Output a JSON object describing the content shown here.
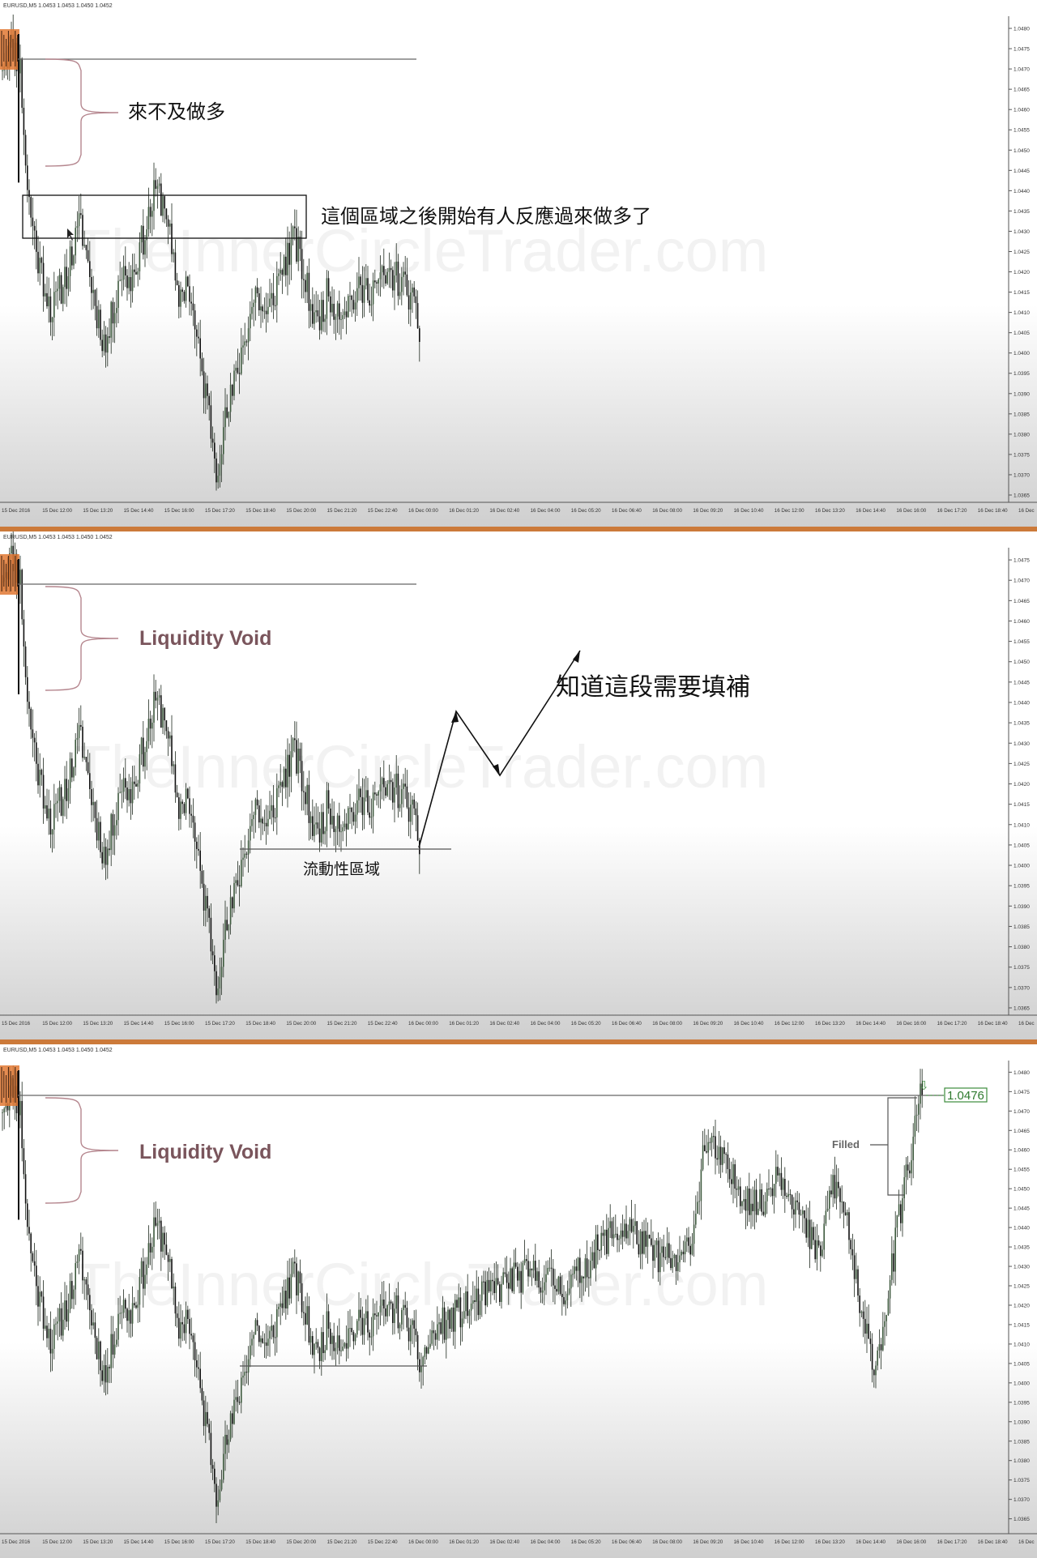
{
  "panels": [
    {
      "symbol_header": "EURUSD,M5 1.0453 1.0453 1.0450 1.0452",
      "watermark": "TheInnerCircleTrader.com",
      "annotations": {
        "brace_text": "來不及做多",
        "box_text": "這個區域之後開始有人反應過來做多了"
      }
    },
    {
      "symbol_header": "EURUSD,M5 1.0453 1.0453 1.0450 1.0452",
      "watermark": "TheInnerCircleTrader.com",
      "annotations": {
        "brace_text": "Liquidity Void",
        "arrow_text": "知道這段需要填補",
        "zone_text": "流動性區域"
      }
    },
    {
      "symbol_header": "EURUSD,M5 1.0453 1.0453 1.0450 1.0452",
      "watermark": "TheInnerCircleTrader.com",
      "annotations": {
        "brace_text": "Liquidity Void",
        "filled_text": "Filled",
        "price_label": "1.0476"
      }
    }
  ],
  "chart_data": [
    {
      "type": "candlestick",
      "symbol": "EURUSD",
      "timeframe": "M5",
      "y_ticks": [
        "1.0480",
        "1.0475",
        "1.0470",
        "1.0465",
        "1.0460",
        "1.0455",
        "1.0450",
        "1.0445",
        "1.0440",
        "1.0435",
        "1.0430",
        "1.0425",
        "1.0420",
        "1.0415",
        "1.0410",
        "1.0405",
        "1.0400",
        "1.0395",
        "1.0390",
        "1.0385",
        "1.0380",
        "1.0375",
        "1.0370",
        "1.0365"
      ],
      "ylim": [
        1.0364,
        1.0483
      ],
      "x_ticks": [
        "15 Dec 2016",
        "15 Dec 12:00",
        "15 Dec 13:20",
        "15 Dec 14:40",
        "15 Dec 16:00",
        "15 Dec 17:20",
        "15 Dec 18:40",
        "15 Dec 20:00",
        "15 Dec 21:20",
        "15 Dec 22:40",
        "16 Dec 00:00",
        "16 Dec 01:20",
        "16 Dec 02:40",
        "16 Dec 04:00",
        "16 Dec 05:20",
        "16 Dec 06:40",
        "16 Dec 08:00",
        "16 Dec 09:20",
        "16 Dec 10:40",
        "16 Dec 12:00",
        "16 Dec 13:20",
        "16 Dec 14:40",
        "16 Dec 16:00",
        "16 Dec 17:20",
        "16 Dec 18:40",
        "16 Dec"
      ],
      "close_path": [
        [
          0,
          1.0472
        ],
        [
          6,
          1.0476
        ],
        [
          10,
          1.047
        ],
        [
          14,
          1.044
        ],
        [
          20,
          1.0423
        ],
        [
          28,
          1.041
        ],
        [
          36,
          1.042
        ],
        [
          44,
          1.0432
        ],
        [
          52,
          1.0412
        ],
        [
          58,
          1.0401
        ],
        [
          66,
          1.042
        ],
        [
          72,
          1.0418
        ],
        [
          80,
          1.043
        ],
        [
          86,
          1.044
        ],
        [
          92,
          1.0436
        ],
        [
          98,
          1.0413
        ],
        [
          104,
          1.0418
        ],
        [
          110,
          1.04
        ],
        [
          116,
          1.0385
        ],
        [
          120,
          1.0372
        ],
        [
          124,
          1.0381
        ],
        [
          130,
          1.0392
        ],
        [
          136,
          1.0404
        ],
        [
          142,
          1.0415
        ],
        [
          148,
          1.0408
        ],
        [
          156,
          1.042
        ],
        [
          164,
          1.0428
        ],
        [
          170,
          1.0417
        ],
        [
          176,
          1.0407
        ],
        [
          182,
          1.0414
        ],
        [
          190,
          1.0411
        ],
        [
          198,
          1.0414
        ],
        [
          206,
          1.0416
        ],
        [
          214,
          1.0418
        ],
        [
          220,
          1.0419
        ],
        [
          228,
          1.0415
        ],
        [
          234,
          1.0405
        ]
      ]
    },
    {
      "type": "candlestick",
      "symbol": "EURUSD",
      "timeframe": "M5",
      "y_ticks": [
        "1.0475",
        "1.0470",
        "1.0465",
        "1.0460",
        "1.0455",
        "1.0450",
        "1.0445",
        "1.0440",
        "1.0435",
        "1.0430",
        "1.0425",
        "1.0420",
        "1.0415",
        "1.0410",
        "1.0405",
        "1.0400",
        "1.0395",
        "1.0390",
        "1.0385",
        "1.0380",
        "1.0375",
        "1.0370",
        "1.0365"
      ],
      "ylim": [
        1.0364,
        1.0478
      ],
      "x_ticks": [
        "15 Dec 2016",
        "15 Dec 12:00",
        "15 Dec 13:20",
        "15 Dec 14:40",
        "15 Dec 16:00",
        "15 Dec 17:20",
        "15 Dec 18:40",
        "15 Dec 20:00",
        "15 Dec 21:20",
        "15 Dec 22:40",
        "16 Dec 00:00",
        "16 Dec 01:20",
        "16 Dec 02:40",
        "16 Dec 04:00",
        "16 Dec 05:20",
        "16 Dec 06:40",
        "16 Dec 08:00",
        "16 Dec 09:20",
        "16 Dec 10:40",
        "16 Dec 12:00",
        "16 Dec 13:20",
        "16 Dec 14:40",
        "16 Dec 16:00",
        "16 Dec 17:20",
        "16 Dec 18:40",
        "16 Dec"
      ],
      "close_path": [
        [
          0,
          1.0472
        ],
        [
          6,
          1.0476
        ],
        [
          10,
          1.047
        ],
        [
          14,
          1.044
        ],
        [
          20,
          1.0423
        ],
        [
          28,
          1.041
        ],
        [
          36,
          1.042
        ],
        [
          44,
          1.0432
        ],
        [
          52,
          1.0412
        ],
        [
          58,
          1.0401
        ],
        [
          66,
          1.042
        ],
        [
          72,
          1.0418
        ],
        [
          80,
          1.043
        ],
        [
          86,
          1.044
        ],
        [
          92,
          1.0436
        ],
        [
          98,
          1.0413
        ],
        [
          104,
          1.0418
        ],
        [
          110,
          1.04
        ],
        [
          116,
          1.0385
        ],
        [
          120,
          1.0372
        ],
        [
          124,
          1.0381
        ],
        [
          130,
          1.0392
        ],
        [
          136,
          1.0404
        ],
        [
          142,
          1.0415
        ],
        [
          148,
          1.0408
        ],
        [
          156,
          1.042
        ],
        [
          164,
          1.0428
        ],
        [
          170,
          1.0417
        ],
        [
          176,
          1.0407
        ],
        [
          182,
          1.0414
        ],
        [
          190,
          1.0411
        ],
        [
          198,
          1.0414
        ],
        [
          206,
          1.0416
        ],
        [
          214,
          1.0418
        ],
        [
          220,
          1.0419
        ],
        [
          228,
          1.0415
        ],
        [
          234,
          1.0405
        ]
      ]
    },
    {
      "type": "candlestick",
      "symbol": "EURUSD",
      "timeframe": "M5",
      "y_ticks": [
        "1.0480",
        "1.0475",
        "1.0470",
        "1.0465",
        "1.0460",
        "1.0455",
        "1.0450",
        "1.0445",
        "1.0440",
        "1.0435",
        "1.0430",
        "1.0425",
        "1.0420",
        "1.0415",
        "1.0410",
        "1.0405",
        "1.0400",
        "1.0395",
        "1.0390",
        "1.0385",
        "1.0380",
        "1.0375",
        "1.0370",
        "1.0365"
      ],
      "ylim": [
        1.0362,
        1.0483
      ],
      "x_ticks": [
        "15 Dec 2016",
        "15 Dec 12:00",
        "15 Dec 13:20",
        "15 Dec 14:40",
        "15 Dec 16:00",
        "15 Dec 17:20",
        "15 Dec 18:40",
        "15 Dec 20:00",
        "15 Dec 21:20",
        "15 Dec 22:40",
        "16 Dec 00:00",
        "16 Dec 01:20",
        "16 Dec 02:40",
        "16 Dec 04:00",
        "16 Dec 05:20",
        "16 Dec 06:40",
        "16 Dec 08:00",
        "16 Dec 09:20",
        "16 Dec 10:40",
        "16 Dec 12:00",
        "16 Dec 13:20",
        "16 Dec 14:40",
        "16 Dec 16:00",
        "16 Dec 17:20",
        "16 Dec 18:40",
        "16 Dec"
      ],
      "close_path": [
        [
          0,
          1.0472
        ],
        [
          6,
          1.0476
        ],
        [
          10,
          1.047
        ],
        [
          14,
          1.044
        ],
        [
          20,
          1.0423
        ],
        [
          28,
          1.041
        ],
        [
          36,
          1.042
        ],
        [
          44,
          1.0432
        ],
        [
          52,
          1.0412
        ],
        [
          58,
          1.0401
        ],
        [
          66,
          1.042
        ],
        [
          72,
          1.0418
        ],
        [
          80,
          1.043
        ],
        [
          86,
          1.044
        ],
        [
          92,
          1.0436
        ],
        [
          98,
          1.0413
        ],
        [
          104,
          1.0418
        ],
        [
          110,
          1.04
        ],
        [
          116,
          1.0385
        ],
        [
          120,
          1.0372
        ],
        [
          124,
          1.0381
        ],
        [
          130,
          1.0392
        ],
        [
          136,
          1.0404
        ],
        [
          142,
          1.0415
        ],
        [
          148,
          1.0408
        ],
        [
          156,
          1.042
        ],
        [
          164,
          1.0428
        ],
        [
          170,
          1.0417
        ],
        [
          176,
          1.0407
        ],
        [
          182,
          1.0414
        ],
        [
          190,
          1.0411
        ],
        [
          198,
          1.0414
        ],
        [
          206,
          1.0416
        ],
        [
          214,
          1.0418
        ],
        [
          220,
          1.0419
        ],
        [
          228,
          1.0415
        ],
        [
          234,
          1.0405
        ],
        [
          244,
          1.0414
        ],
        [
          256,
          1.0418
        ],
        [
          270,
          1.0422
        ],
        [
          286,
          1.0427
        ],
        [
          300,
          1.0428
        ],
        [
          316,
          1.0424
        ],
        [
          330,
          1.0432
        ],
        [
          340,
          1.0438
        ],
        [
          352,
          1.044
        ],
        [
          362,
          1.0434
        ],
        [
          372,
          1.0432
        ],
        [
          380,
          1.043
        ],
        [
          388,
          1.044
        ],
        [
          394,
          1.0462
        ],
        [
          402,
          1.0458
        ],
        [
          410,
          1.0452
        ],
        [
          418,
          1.0448
        ],
        [
          426,
          1.0445
        ],
        [
          434,
          1.0455
        ],
        [
          442,
          1.045
        ],
        [
          450,
          1.044
        ],
        [
          458,
          1.0432
        ],
        [
          466,
          1.0452
        ],
        [
          474,
          1.0442
        ],
        [
          482,
          1.0415
        ],
        [
          490,
          1.0405
        ],
        [
          496,
          1.042
        ],
        [
          504,
          1.0445
        ],
        [
          510,
          1.046
        ],
        [
          516,
          1.0476
        ]
      ]
    }
  ]
}
